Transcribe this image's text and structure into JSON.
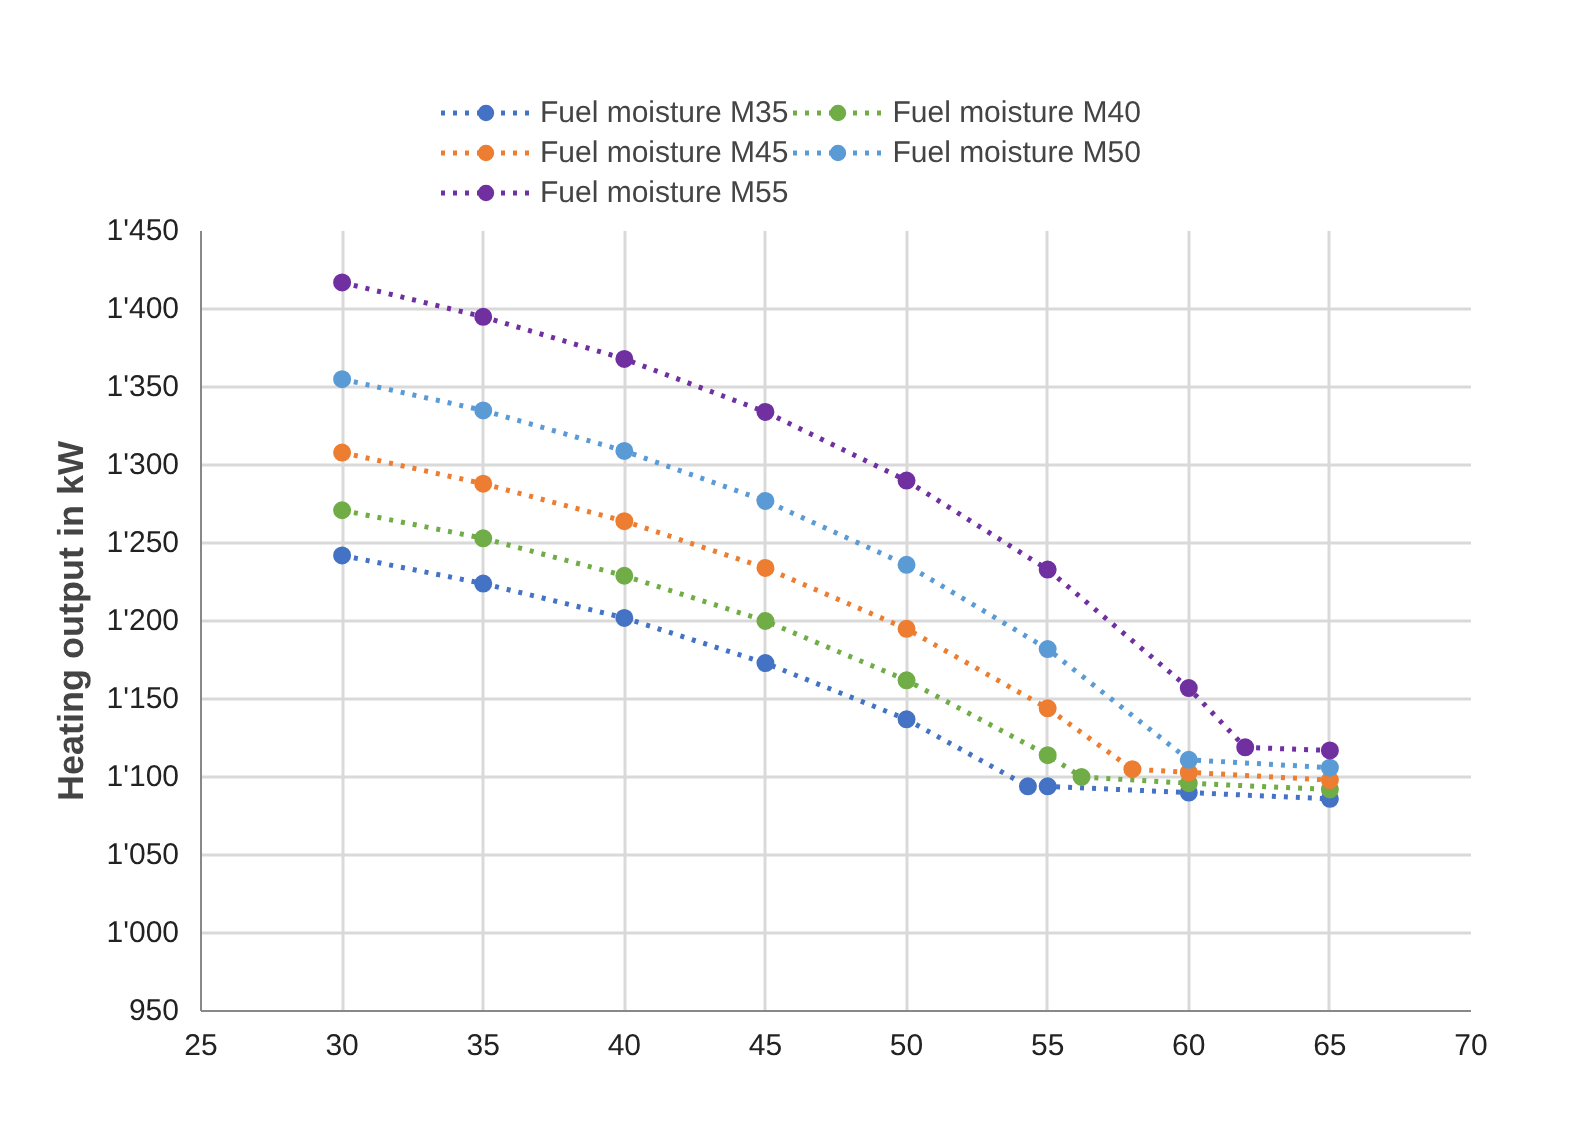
{
  "chart_data": {
    "type": "line",
    "ylabel": "Heating output in kW",
    "xlim": [
      25,
      70
    ],
    "xticks": [
      25,
      30,
      35,
      40,
      45,
      50,
      55,
      60,
      65,
      70
    ],
    "ylim": [
      950,
      1450
    ],
    "yticks": [
      950,
      {
        "value": 1000,
        "label": "1'000"
      },
      {
        "value": 1050,
        "label": "1'050"
      },
      {
        "value": 1100,
        "label": "1'100"
      },
      {
        "value": 1150,
        "label": "1'150"
      },
      {
        "value": 1200,
        "label": "1'200"
      },
      {
        "value": 1250,
        "label": "1'250"
      },
      {
        "value": 1300,
        "label": "1'300"
      },
      {
        "value": 1350,
        "label": "1'350"
      },
      {
        "value": 1400,
        "label": "1'400"
      },
      {
        "value": 1450,
        "label": "1'450"
      }
    ],
    "grid": true,
    "legend": "top",
    "marker": "circle",
    "line_style": "dotted",
    "series": [
      {
        "name": "Fuel moisture M35",
        "color": "#4472c4",
        "x": [
          30,
          35,
          40,
          45,
          50,
          54.3,
          55,
          60,
          65
        ],
        "values": [
          1242,
          1224,
          1202,
          1173,
          1137,
          1094,
          1094,
          1090,
          1086
        ]
      },
      {
        "name": "Fuel moisture M40",
        "color": "#70ad47",
        "x": [
          30,
          35,
          40,
          45,
          50,
          55,
          56.2,
          60,
          65
        ],
        "values": [
          1271,
          1253,
          1229,
          1200,
          1162,
          1114,
          1100,
          1096,
          1092
        ]
      },
      {
        "name": "Fuel moisture M45",
        "color": "#ed7d31",
        "x": [
          30,
          35,
          40,
          45,
          50,
          55,
          58,
          60,
          65
        ],
        "values": [
          1308,
          1288,
          1264,
          1234,
          1195,
          1144,
          1105,
          1103,
          1098
        ]
      },
      {
        "name": "Fuel moisture M50",
        "color": "#5b9bd5",
        "x": [
          30,
          35,
          40,
          45,
          50,
          55,
          60,
          65
        ],
        "values": [
          1355,
          1335,
          1309,
          1277,
          1236,
          1182,
          1111,
          1106
        ]
      },
      {
        "name": "Fuel moisture M55",
        "color": "#7030a0",
        "x": [
          30,
          35,
          40,
          45,
          50,
          55,
          60,
          62,
          65
        ],
        "values": [
          1417,
          1395,
          1368,
          1334,
          1290,
          1233,
          1157,
          1119,
          1117
        ]
      }
    ]
  }
}
